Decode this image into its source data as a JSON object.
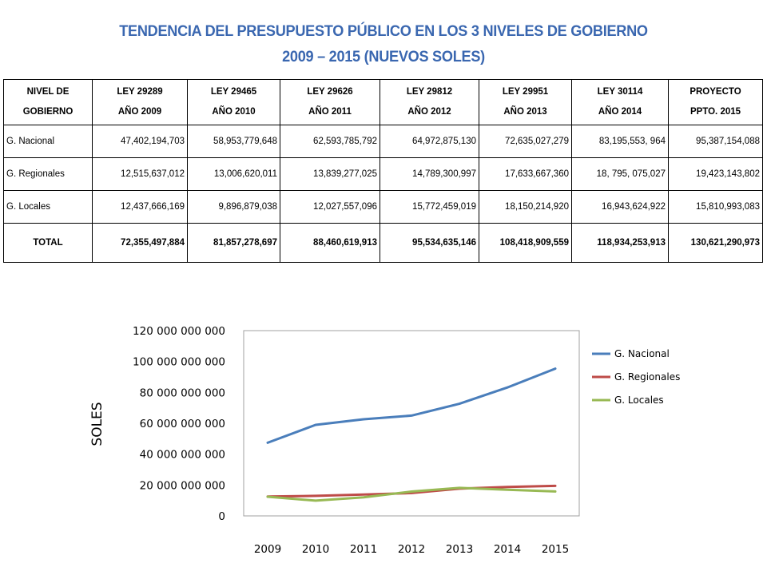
{
  "title": {
    "line1": "TENDENCIA DEL PRESUPUESTO PÚBLICO EN LOS 3 NIVELES DE GOBIERNO",
    "line2": "2009 – 2015 (NUEVOS SOLES)"
  },
  "table": {
    "header_first": [
      "NIVEL DE",
      "GOBIERNO"
    ],
    "columns": [
      {
        "line1": "LEY 29289",
        "line2": "AÑO 2009"
      },
      {
        "line1": "LEY 29465",
        "line2": "AÑO 2010"
      },
      {
        "line1": "LEY 29626",
        "line2": "AÑO 2011"
      },
      {
        "line1": "LEY 29812",
        "line2": "AÑO 2012"
      },
      {
        "line1": "LEY  29951",
        "line2": "AÑO 2013"
      },
      {
        "line1": "LEY 30114",
        "line2": "AÑO 2014"
      },
      {
        "line1": "PROYECTO",
        "line2": "PPTO. 2015"
      }
    ],
    "rows": [
      {
        "label": "G. Nacional",
        "values": [
          "47,402,194,703",
          "58,953,779,648",
          "62,593,785,792",
          "64,972,875,130",
          "72,635,027,279",
          "83,195,553, 964",
          "95,387,154,088"
        ]
      },
      {
        "label": "G. Regionales",
        "values": [
          "12,515,637,012",
          "13,006,620,011",
          "13,839,277,025",
          "14,789,300,997",
          "17,633,667,360",
          "18, 795, 075,027",
          "19,423,143,802"
        ]
      },
      {
        "label": "G. Locales",
        "values": [
          "12,437,666,169",
          "9,896,879,038",
          "12,027,557,096",
          "15,772,459,019",
          "18,150,214,920",
          "16,943,624,922",
          "15,810,993,083"
        ]
      }
    ],
    "total": {
      "label": "TOTAL",
      "values": [
        "72,355,497,884",
        "81,857,278,697",
        "88,460,619,913",
        "95,534,635,146",
        "108,418,909,559",
        "118,934,253,913",
        "130,621,290,973"
      ]
    }
  },
  "chart_data": {
    "type": "line",
    "title": "",
    "xlabel": "",
    "ylabel": "SOLES",
    "categories": [
      "2009",
      "2010",
      "2011",
      "2012",
      "2013",
      "2014",
      "2015"
    ],
    "ylim": [
      0,
      120000000000
    ],
    "yticks": [
      0,
      20000000000,
      40000000000,
      60000000000,
      80000000000,
      100000000000,
      120000000000
    ],
    "ytick_labels": [
      "0",
      "20 000 000 000",
      "40 000 000 000",
      "60 000 000 000",
      "80 000 000 000",
      "100 000 000 000",
      "120 000 000 000"
    ],
    "grid": false,
    "legend_position": "right",
    "series": [
      {
        "name": "G. Nacional",
        "color": "#4a7ebb",
        "values": [
          47402194703,
          58953779648,
          62593785792,
          64972875130,
          72635027279,
          83195553964,
          95387154088
        ]
      },
      {
        "name": "G. Regionales",
        "color": "#be4b48",
        "values": [
          12515637012,
          13006620011,
          13839277025,
          14789300997,
          17633667360,
          18795075027,
          19423143802
        ]
      },
      {
        "name": "G. Locales",
        "color": "#98b954",
        "values": [
          12437666169,
          9896879038,
          12027557096,
          15772459019,
          18150214920,
          16943624922,
          15810993083
        ]
      }
    ]
  }
}
